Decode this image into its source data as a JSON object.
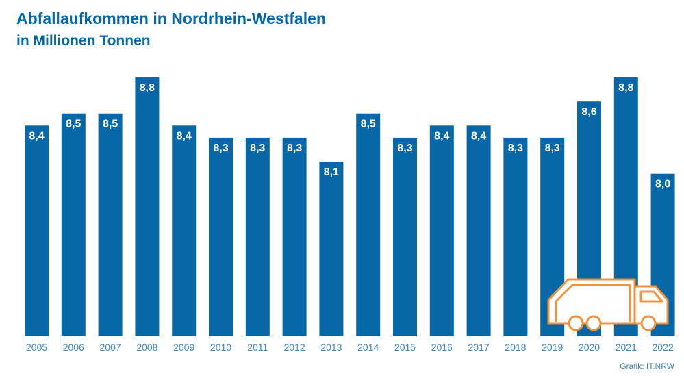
{
  "chart_data": {
    "type": "bar",
    "title": "Abfallaufkommen in Nordrhein-Westfalen",
    "subtitle": "in Millionen Tonnen",
    "categories": [
      "2005",
      "2006",
      "2007",
      "2008",
      "2009",
      "2010",
      "2011",
      "2012",
      "2013",
      "2014",
      "2015",
      "2016",
      "2017",
      "2018",
      "2019",
      "2020",
      "2021",
      "2022"
    ],
    "values": [
      8.4,
      8.5,
      8.5,
      8.8,
      8.4,
      8.3,
      8.3,
      8.3,
      8.1,
      8.5,
      8.3,
      8.4,
      8.4,
      8.3,
      8.3,
      8.6,
      8.8,
      8.0
    ],
    "data_labels": [
      "8,4",
      "8,5",
      "8,5",
      "8,8",
      "8,4",
      "8,3",
      "8,3",
      "8,3",
      "8,1",
      "8,5",
      "8,3",
      "8,4",
      "8,4",
      "8,3",
      "8,3",
      "8,6",
      "8,8",
      "8,0"
    ],
    "xlabel": "",
    "ylabel": "",
    "ylim": [
      6.65,
      8.8
    ],
    "grid": false,
    "legend": "none",
    "bar_color": "#0867a6",
    "decoration": "garbage-truck-icon",
    "decoration_color": "#f0933a"
  },
  "source": "Grafik: IT.NRW"
}
